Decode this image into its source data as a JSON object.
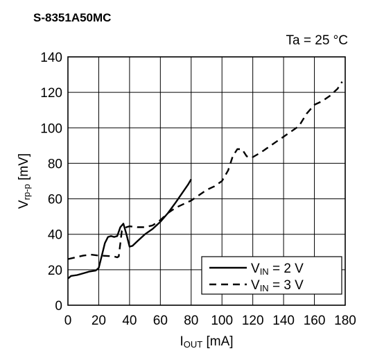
{
  "chart_data": {
    "type": "line",
    "title": "S-8351A50MC",
    "annotation": "Ta = 25 °C",
    "xlabel": {
      "main": "I",
      "sub": "OUT",
      "unit": " [mA]"
    },
    "ylabel": {
      "main": "V",
      "sub": "rp-p",
      "unit": " [mV]"
    },
    "xlim": [
      0,
      180
    ],
    "ylim": [
      0,
      140
    ],
    "xticks": [
      0,
      20,
      40,
      60,
      80,
      100,
      120,
      140,
      160,
      180
    ],
    "yticks": [
      0,
      20,
      40,
      60,
      80,
      100,
      120,
      140
    ],
    "grid": true,
    "legend_position": "bottom-right",
    "series": [
      {
        "name": "V_IN = 2 V",
        "legend_main": "V",
        "legend_sub": "IN",
        "legend_rest": " = 2 V",
        "dash": "solid",
        "points": [
          [
            0,
            15
          ],
          [
            2,
            16.5
          ],
          [
            6,
            17
          ],
          [
            10,
            18
          ],
          [
            14,
            19
          ],
          [
            18,
            19.5
          ],
          [
            20,
            21
          ],
          [
            22,
            28
          ],
          [
            24,
            35
          ],
          [
            26,
            38.5
          ],
          [
            28,
            39
          ],
          [
            30,
            38.5
          ],
          [
            32,
            39
          ],
          [
            34,
            44
          ],
          [
            36,
            46
          ],
          [
            38,
            40
          ],
          [
            40,
            33
          ],
          [
            42,
            33.5
          ],
          [
            45,
            36
          ],
          [
            50,
            40
          ],
          [
            55,
            43
          ],
          [
            60,
            47
          ],
          [
            65,
            52
          ],
          [
            70,
            58
          ],
          [
            74,
            63
          ],
          [
            78,
            68
          ],
          [
            80,
            71
          ]
        ]
      },
      {
        "name": "V_IN = 3 V",
        "legend_main": "V",
        "legend_sub": "IN",
        "legend_rest": " = 3 V",
        "dash": "dashed",
        "points": [
          [
            0,
            26
          ],
          [
            5,
            27
          ],
          [
            10,
            28
          ],
          [
            15,
            28.5
          ],
          [
            20,
            28
          ],
          [
            25,
            27.8
          ],
          [
            30,
            27.5
          ],
          [
            32,
            27
          ],
          [
            33,
            27.5
          ],
          [
            35,
            42
          ],
          [
            38,
            44
          ],
          [
            40,
            44.5
          ],
          [
            45,
            44
          ],
          [
            50,
            44
          ],
          [
            55,
            45
          ],
          [
            60,
            48
          ],
          [
            65,
            52
          ],
          [
            70,
            55
          ],
          [
            75,
            57
          ],
          [
            80,
            59
          ],
          [
            85,
            62
          ],
          [
            90,
            65
          ],
          [
            95,
            67
          ],
          [
            100,
            70
          ],
          [
            104,
            76
          ],
          [
            107,
            84
          ],
          [
            110,
            88
          ],
          [
            113,
            88
          ],
          [
            116,
            84
          ],
          [
            119,
            83
          ],
          [
            125,
            86
          ],
          [
            130,
            89
          ],
          [
            135,
            92
          ],
          [
            140,
            95
          ],
          [
            145,
            98
          ],
          [
            150,
            101
          ],
          [
            155,
            108
          ],
          [
            160,
            113
          ],
          [
            165,
            115
          ],
          [
            170,
            118
          ],
          [
            175,
            122
          ],
          [
            178,
            126
          ]
        ]
      }
    ]
  }
}
